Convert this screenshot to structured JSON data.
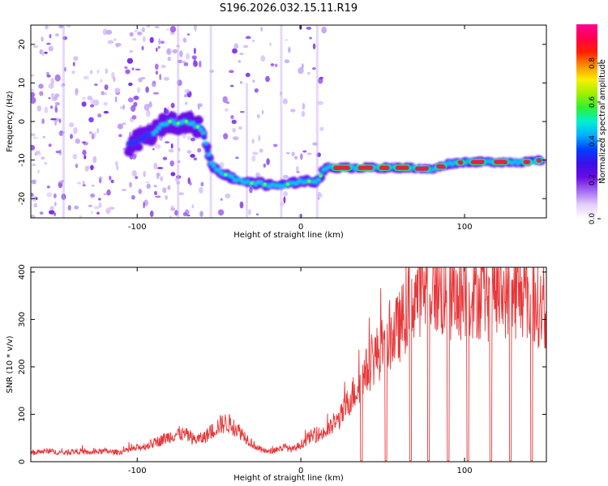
{
  "figure_title": "S196.2026.032.15.11.R19",
  "chart_data": [
    {
      "type": "heatmap",
      "title": "S196.2026.032.15.11.R19",
      "xlabel": "Height of straight line (km)",
      "ylabel": "Frequency (Hz)",
      "xlim": [
        -165,
        150
      ],
      "ylim": [
        -25,
        25
      ],
      "x_ticks": [
        -100,
        0,
        100
      ],
      "y_ticks": [
        -20,
        -10,
        0,
        10,
        20
      ],
      "colorbar": {
        "label": "Normalized spectral amplitude",
        "range": [
          0.0,
          1.0
        ],
        "ticks": [
          "0.0",
          "0.2",
          "0.4",
          "0.6",
          "0.8"
        ],
        "colors": [
          "#ffffff",
          "#e4cffa",
          "#a46af2",
          "#6a0ae6",
          "#3a10e8",
          "#0040ff",
          "#00b0ff",
          "#00f0d0",
          "#30f030",
          "#a0f000",
          "#f8f000",
          "#ff9000",
          "#ff2000",
          "#ff0050",
          "#ff0090"
        ]
      },
      "ridge": {
        "x": [
          -105,
          -100,
          -95,
          -90,
          -85,
          -80,
          -75,
          -70,
          -65,
          -60,
          -55,
          -50,
          -45,
          -40,
          -35,
          -30,
          -25,
          -20,
          -15,
          -10,
          -5,
          0,
          5,
          10,
          15,
          20,
          30,
          40,
          50,
          60,
          70,
          80,
          90,
          100,
          110,
          120,
          130,
          140,
          147
        ],
        "y": [
          -6,
          -5,
          -4,
          -3,
          -1,
          0,
          -0.5,
          0,
          -1,
          -2,
          -11,
          -13,
          -14,
          -15,
          -15.5,
          -16,
          -16,
          -16.5,
          -16.5,
          -16.5,
          -16,
          -15.5,
          -15.5,
          -15.5,
          -12,
          -12,
          -12,
          -12,
          -12,
          -12,
          -12,
          -12.5,
          -11,
          -10.5,
          -10.5,
          -10.5,
          -10.5,
          -10.5,
          -10
        ]
      }
    },
    {
      "type": "line",
      "xlabel": "Height of straight line (km)",
      "ylabel": "SNR (10 * v/v)",
      "xlim": [
        -165,
        150
      ],
      "ylim": [
        0,
        410
      ],
      "x_ticks": [
        -100,
        0,
        100
      ],
      "y_ticks": [
        0,
        100,
        200,
        300,
        400
      ],
      "line_color": "#e8383a",
      "series": [
        {
          "name": "SNR",
          "x": [
            -165,
            -160,
            -155,
            -150,
            -145,
            -140,
            -135,
            -130,
            -125,
            -120,
            -115,
            -110,
            -105,
            -100,
            -95,
            -90,
            -85,
            -80,
            -75,
            -70,
            -65,
            -60,
            -55,
            -50,
            -45,
            -40,
            -35,
            -30,
            -25,
            -20,
            -15,
            -10,
            -5,
            0,
            5,
            10,
            15,
            20,
            25,
            30,
            35,
            40,
            45,
            50,
            55,
            60,
            65,
            70,
            75,
            80,
            85,
            90,
            95,
            100,
            105,
            110,
            115,
            120,
            125,
            130,
            135,
            140,
            145,
            150
          ],
          "values": [
            18,
            20,
            22,
            20,
            18,
            20,
            22,
            18,
            20,
            22,
            20,
            20,
            24,
            28,
            32,
            38,
            45,
            52,
            58,
            55,
            45,
            48,
            60,
            75,
            80,
            70,
            55,
            38,
            25,
            20,
            25,
            30,
            25,
            35,
            50,
            55,
            60,
            75,
            95,
            130,
            155,
            185,
            215,
            235,
            255,
            275,
            310,
            345,
            355,
            360,
            345,
            330,
            335,
            340,
            345,
            340,
            335,
            340,
            345,
            340,
            345,
            330,
            320,
            300
          ]
        }
      ],
      "dropouts_x": [
        37,
        52,
        67,
        78,
        90,
        102,
        116,
        128,
        141
      ]
    }
  ]
}
